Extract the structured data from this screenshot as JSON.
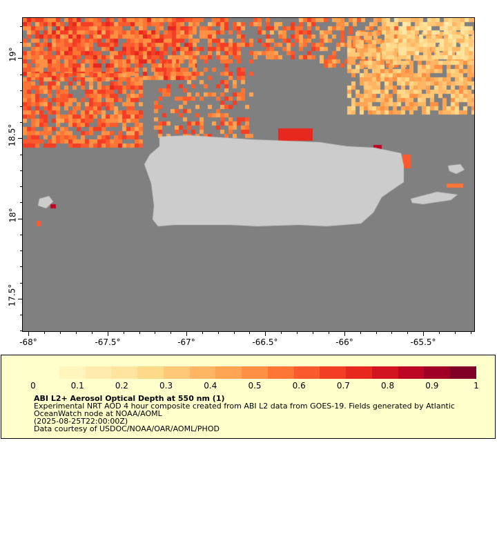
{
  "map": {
    "y_axis_labels": [
      "19°",
      "18.5°",
      "18°",
      "17.5°"
    ],
    "x_axis_labels": [
      "-68°",
      "-67.5°",
      "-67°",
      "-66.5°",
      "-66°",
      "-65.5°"
    ],
    "land_color": "#cccccc",
    "background_color": "#808080",
    "latitude_range": [
      17.23,
      19.23
    ],
    "longitude_range": [
      -68.03,
      -65.18
    ],
    "x_ticks_values": [
      -68,
      -67.5,
      -67,
      -66.5,
      -66,
      -65.5
    ],
    "y_ticks_values": [
      19,
      18.5,
      18,
      17.5
    ]
  },
  "legend": {
    "colorbar_labels": [
      "0",
      "0.1",
      "0.2",
      "0.3",
      "0.4",
      "0.5",
      "0.6",
      "0.7",
      "0.8",
      "0.9",
      "1"
    ],
    "colorbar_colors": [
      "#ffffcc",
      "#fff5bd",
      "#ffecad",
      "#fee49e",
      "#fed98a",
      "#fec876",
      "#feb664",
      "#fda455",
      "#fd9043",
      "#fc7535",
      "#fb5a2e",
      "#f43d25",
      "#e6281e",
      "#d21420",
      "#bd0624",
      "#a00026",
      "#800026"
    ],
    "title": "ABI L2+ Aerosol Optical Depth at 550 nm (1)",
    "line1": "Experimental NRT AOD 4 hour composite created from ABI L2 data from GOES-19. Fields generated by Atlantic",
    "line2": "OceanWatch node at NOAA/AOML",
    "line3": "(2025-08-25T22:00:00Z)",
    "line4": "Data courtesy of USDOC/NOAA/OAR/AOML/PHOD"
  }
}
